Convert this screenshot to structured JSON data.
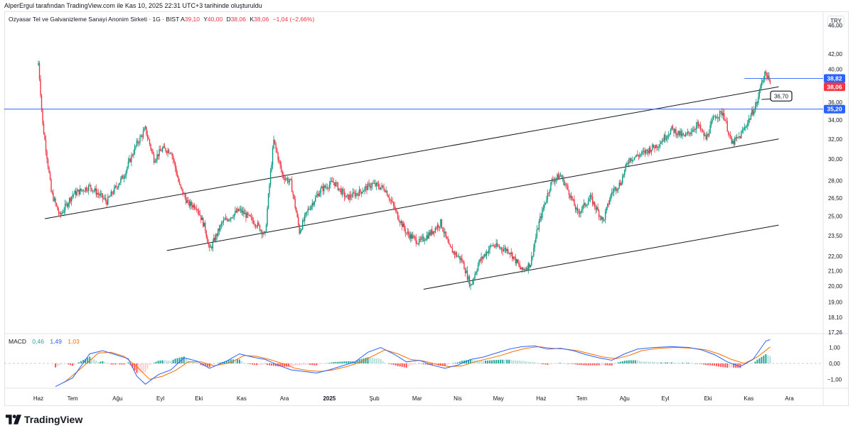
{
  "header": {
    "attribution": "AlperErgul tarafından TradingView.com ile Kas 10, 2025 22:31 UTC+3 tarihinde oluşturuldu",
    "symbol": "Ozyasar Tel ve Galvanizleme Sanayi Anonim Sirketi · 1G · BIST",
    "ohlc": {
      "o_label": "A",
      "o": "39,10",
      "h_label": "Y",
      "h": "40,00",
      "l_label": "D",
      "l": "38,06",
      "c_label": "K",
      "c": "38,06",
      "change": "−1,04 (−2,66%)"
    },
    "currency": "TRY"
  },
  "macd_legend": {
    "name": "MACD",
    "hist": "0,46",
    "macd": "1,49",
    "signal": "1,03"
  },
  "footer": {
    "brand": "TradingView"
  },
  "colors": {
    "up": "#089981",
    "down": "#f23645",
    "macd": "#2962ff",
    "signal": "#ff6d00",
    "hline": "#2962ff",
    "trend": "#131722"
  },
  "chart_data": {
    "type": "candlestick",
    "price_axis_ticks": [
      "46,00",
      "42,00",
      "40,00",
      "36,00",
      "34,00",
      "32,00",
      "30,00",
      "28,00",
      "26,50",
      "25,00",
      "23,50",
      "22,00",
      "21,00",
      "20,00",
      "19,00",
      "18,10",
      "17,26"
    ],
    "macd_axis_ticks": [
      "1,00",
      "0,00",
      "−1,00"
    ],
    "x_ticks": [
      "Haz",
      "Tem",
      "Ağu",
      "Eyl",
      "Eki",
      "Kas",
      "Ara",
      "2025",
      "Şub",
      "Mar",
      "Nis",
      "May",
      "Haz",
      "Tem",
      "Ağu",
      "Eyl",
      "Eki",
      "Kas",
      "Ara"
    ],
    "price_labels": [
      {
        "text": "38,82",
        "price": 38.82,
        "color": "#2962ff"
      },
      {
        "text": "38,06",
        "price": 38.06,
        "color": "#f23645"
      },
      {
        "text": "35,20",
        "price": 35.2,
        "color": "#2962ff"
      }
    ],
    "horizontal_line": {
      "price": 35.2
    },
    "annotation": {
      "text": "36,70",
      "price": 36.7
    },
    "macd_range": [
      -1.6,
      1.6
    ],
    "trendlines": [
      {
        "from": {
          "t": 1.5,
          "price": 24.8
        },
        "to": {
          "t": 173,
          "price": 37.8
        }
      },
      {
        "from": {
          "t": 30,
          "price": 22.4
        },
        "to": {
          "t": 173,
          "price": 32.0
        }
      },
      {
        "from": {
          "t": 90,
          "price": 19.8
        },
        "to": {
          "t": 173,
          "price": 24.3
        }
      }
    ],
    "close_path": [
      [
        0,
        40.8
      ],
      [
        1,
        33.5
      ],
      [
        3,
        27.0
      ],
      [
        5,
        25.0
      ],
      [
        8,
        26.8
      ],
      [
        12,
        27.5
      ],
      [
        16,
        26.2
      ],
      [
        20,
        28.5
      ],
      [
        23,
        31.5
      ],
      [
        25,
        33.0
      ],
      [
        27,
        30.0
      ],
      [
        29,
        31.0
      ],
      [
        31,
        30.8
      ],
      [
        33,
        27.5
      ],
      [
        35,
        26.0
      ],
      [
        37,
        25.8
      ],
      [
        39,
        24.0
      ],
      [
        40,
        22.4
      ],
      [
        43,
        24.5
      ],
      [
        47,
        25.5
      ],
      [
        51,
        24.4
      ],
      [
        53,
        23.5
      ],
      [
        55,
        31.8
      ],
      [
        57,
        28.5
      ],
      [
        59,
        27.8
      ],
      [
        61,
        23.8
      ],
      [
        63,
        25.5
      ],
      [
        66,
        27.2
      ],
      [
        69,
        27.9
      ],
      [
        72,
        26.5
      ],
      [
        75,
        27.0
      ],
      [
        78,
        27.7
      ],
      [
        81,
        27.3
      ],
      [
        84,
        25.0
      ],
      [
        86,
        23.7
      ],
      [
        89,
        23.0
      ],
      [
        92,
        23.8
      ],
      [
        94,
        24.5
      ],
      [
        96,
        22.6
      ],
      [
        99,
        21.7
      ],
      [
        101,
        20.0
      ],
      [
        103,
        21.6
      ],
      [
        106,
        22.8
      ],
      [
        110,
        22.4
      ],
      [
        113,
        21.0
      ],
      [
        115,
        21.5
      ],
      [
        117,
        24.5
      ],
      [
        120,
        28.0
      ],
      [
        122,
        28.5
      ],
      [
        124,
        27.0
      ],
      [
        126,
        25.2
      ],
      [
        129,
        26.5
      ],
      [
        132,
        24.6
      ],
      [
        134,
        27.0
      ],
      [
        136,
        27.8
      ],
      [
        138,
        30.0
      ],
      [
        141,
        30.5
      ],
      [
        145,
        31.5
      ],
      [
        148,
        33.0
      ],
      [
        151,
        32.2
      ],
      [
        154,
        33.5
      ],
      [
        156,
        32.0
      ],
      [
        158,
        34.4
      ],
      [
        160,
        34.8
      ],
      [
        162,
        31.5
      ],
      [
        164,
        32.3
      ],
      [
        166,
        34.0
      ],
      [
        168,
        36.0
      ],
      [
        169,
        38.5
      ],
      [
        170,
        39.5
      ],
      [
        171,
        38.06
      ]
    ],
    "macd_path": [
      [
        4,
        -1.45
      ],
      [
        8,
        -0.9
      ],
      [
        12,
        0.6
      ],
      [
        15,
        0.8
      ],
      [
        18,
        0.55
      ],
      [
        21,
        0.3
      ],
      [
        23,
        -0.8
      ],
      [
        25,
        -1.3
      ],
      [
        28,
        -0.7
      ],
      [
        31,
        -0.4
      ],
      [
        34,
        0.35
      ],
      [
        37,
        0.15
      ],
      [
        40,
        -0.3
      ],
      [
        44,
        0.15
      ],
      [
        47,
        0.6
      ],
      [
        50,
        0.4
      ],
      [
        53,
        0.25
      ],
      [
        56,
        -0.1
      ],
      [
        59,
        -0.4
      ],
      [
        62,
        -0.5
      ],
      [
        65,
        -0.6
      ],
      [
        68,
        -0.4
      ],
      [
        71,
        -0.15
      ],
      [
        74,
        0.1
      ],
      [
        77,
        0.7
      ],
      [
        80,
        1.0
      ],
      [
        83,
        0.6
      ],
      [
        86,
        0.1
      ],
      [
        89,
        0.2
      ],
      [
        92,
        -0.1
      ],
      [
        95,
        -0.3
      ],
      [
        98,
        -0.1
      ],
      [
        101,
        0.25
      ],
      [
        104,
        0.4
      ],
      [
        107,
        0.65
      ],
      [
        110,
        0.9
      ],
      [
        113,
        1.05
      ],
      [
        116,
        1.1
      ],
      [
        119,
        0.9
      ],
      [
        122,
        0.95
      ],
      [
        125,
        0.8
      ],
      [
        128,
        0.55
      ],
      [
        131,
        0.35
      ],
      [
        134,
        0.2
      ],
      [
        137,
        0.6
      ],
      [
        140,
        0.9
      ],
      [
        144,
        1.0
      ],
      [
        148,
        1.05
      ],
      [
        152,
        1.0
      ],
      [
        155,
        0.85
      ],
      [
        158,
        0.55
      ],
      [
        161,
        0.1
      ],
      [
        164,
        -0.2
      ],
      [
        167,
        0.25
      ],
      [
        170,
        1.4
      ],
      [
        171,
        1.49
      ]
    ],
    "signal_path": [
      [
        6,
        -1.2
      ],
      [
        10,
        -0.3
      ],
      [
        14,
        0.65
      ],
      [
        17,
        0.7
      ],
      [
        20,
        0.45
      ],
      [
        23,
        -0.2
      ],
      [
        26,
        -1.0
      ],
      [
        29,
        -0.8
      ],
      [
        32,
        -0.45
      ],
      [
        35,
        0.1
      ],
      [
        38,
        0.1
      ],
      [
        41,
        -0.15
      ],
      [
        45,
        0.05
      ],
      [
        48,
        0.5
      ],
      [
        51,
        0.45
      ],
      [
        54,
        0.25
      ],
      [
        57,
        0.0
      ],
      [
        60,
        -0.3
      ],
      [
        63,
        -0.45
      ],
      [
        66,
        -0.5
      ],
      [
        69,
        -0.4
      ],
      [
        72,
        -0.2
      ],
      [
        75,
        0.05
      ],
      [
        78,
        0.45
      ],
      [
        81,
        0.85
      ],
      [
        84,
        0.6
      ],
      [
        87,
        0.25
      ],
      [
        90,
        0.15
      ],
      [
        93,
        -0.05
      ],
      [
        96,
        -0.2
      ],
      [
        99,
        -0.15
      ],
      [
        102,
        0.1
      ],
      [
        105,
        0.3
      ],
      [
        108,
        0.5
      ],
      [
        111,
        0.75
      ],
      [
        114,
        0.95
      ],
      [
        117,
        1.05
      ],
      [
        120,
        0.95
      ],
      [
        123,
        0.9
      ],
      [
        126,
        0.8
      ],
      [
        129,
        0.6
      ],
      [
        132,
        0.4
      ],
      [
        135,
        0.3
      ],
      [
        138,
        0.5
      ],
      [
        141,
        0.8
      ],
      [
        145,
        0.95
      ],
      [
        149,
        1.0
      ],
      [
        153,
        0.95
      ],
      [
        156,
        0.85
      ],
      [
        159,
        0.6
      ],
      [
        162,
        0.25
      ],
      [
        165,
        0.0
      ],
      [
        168,
        0.4
      ],
      [
        171,
        1.03
      ]
    ]
  }
}
